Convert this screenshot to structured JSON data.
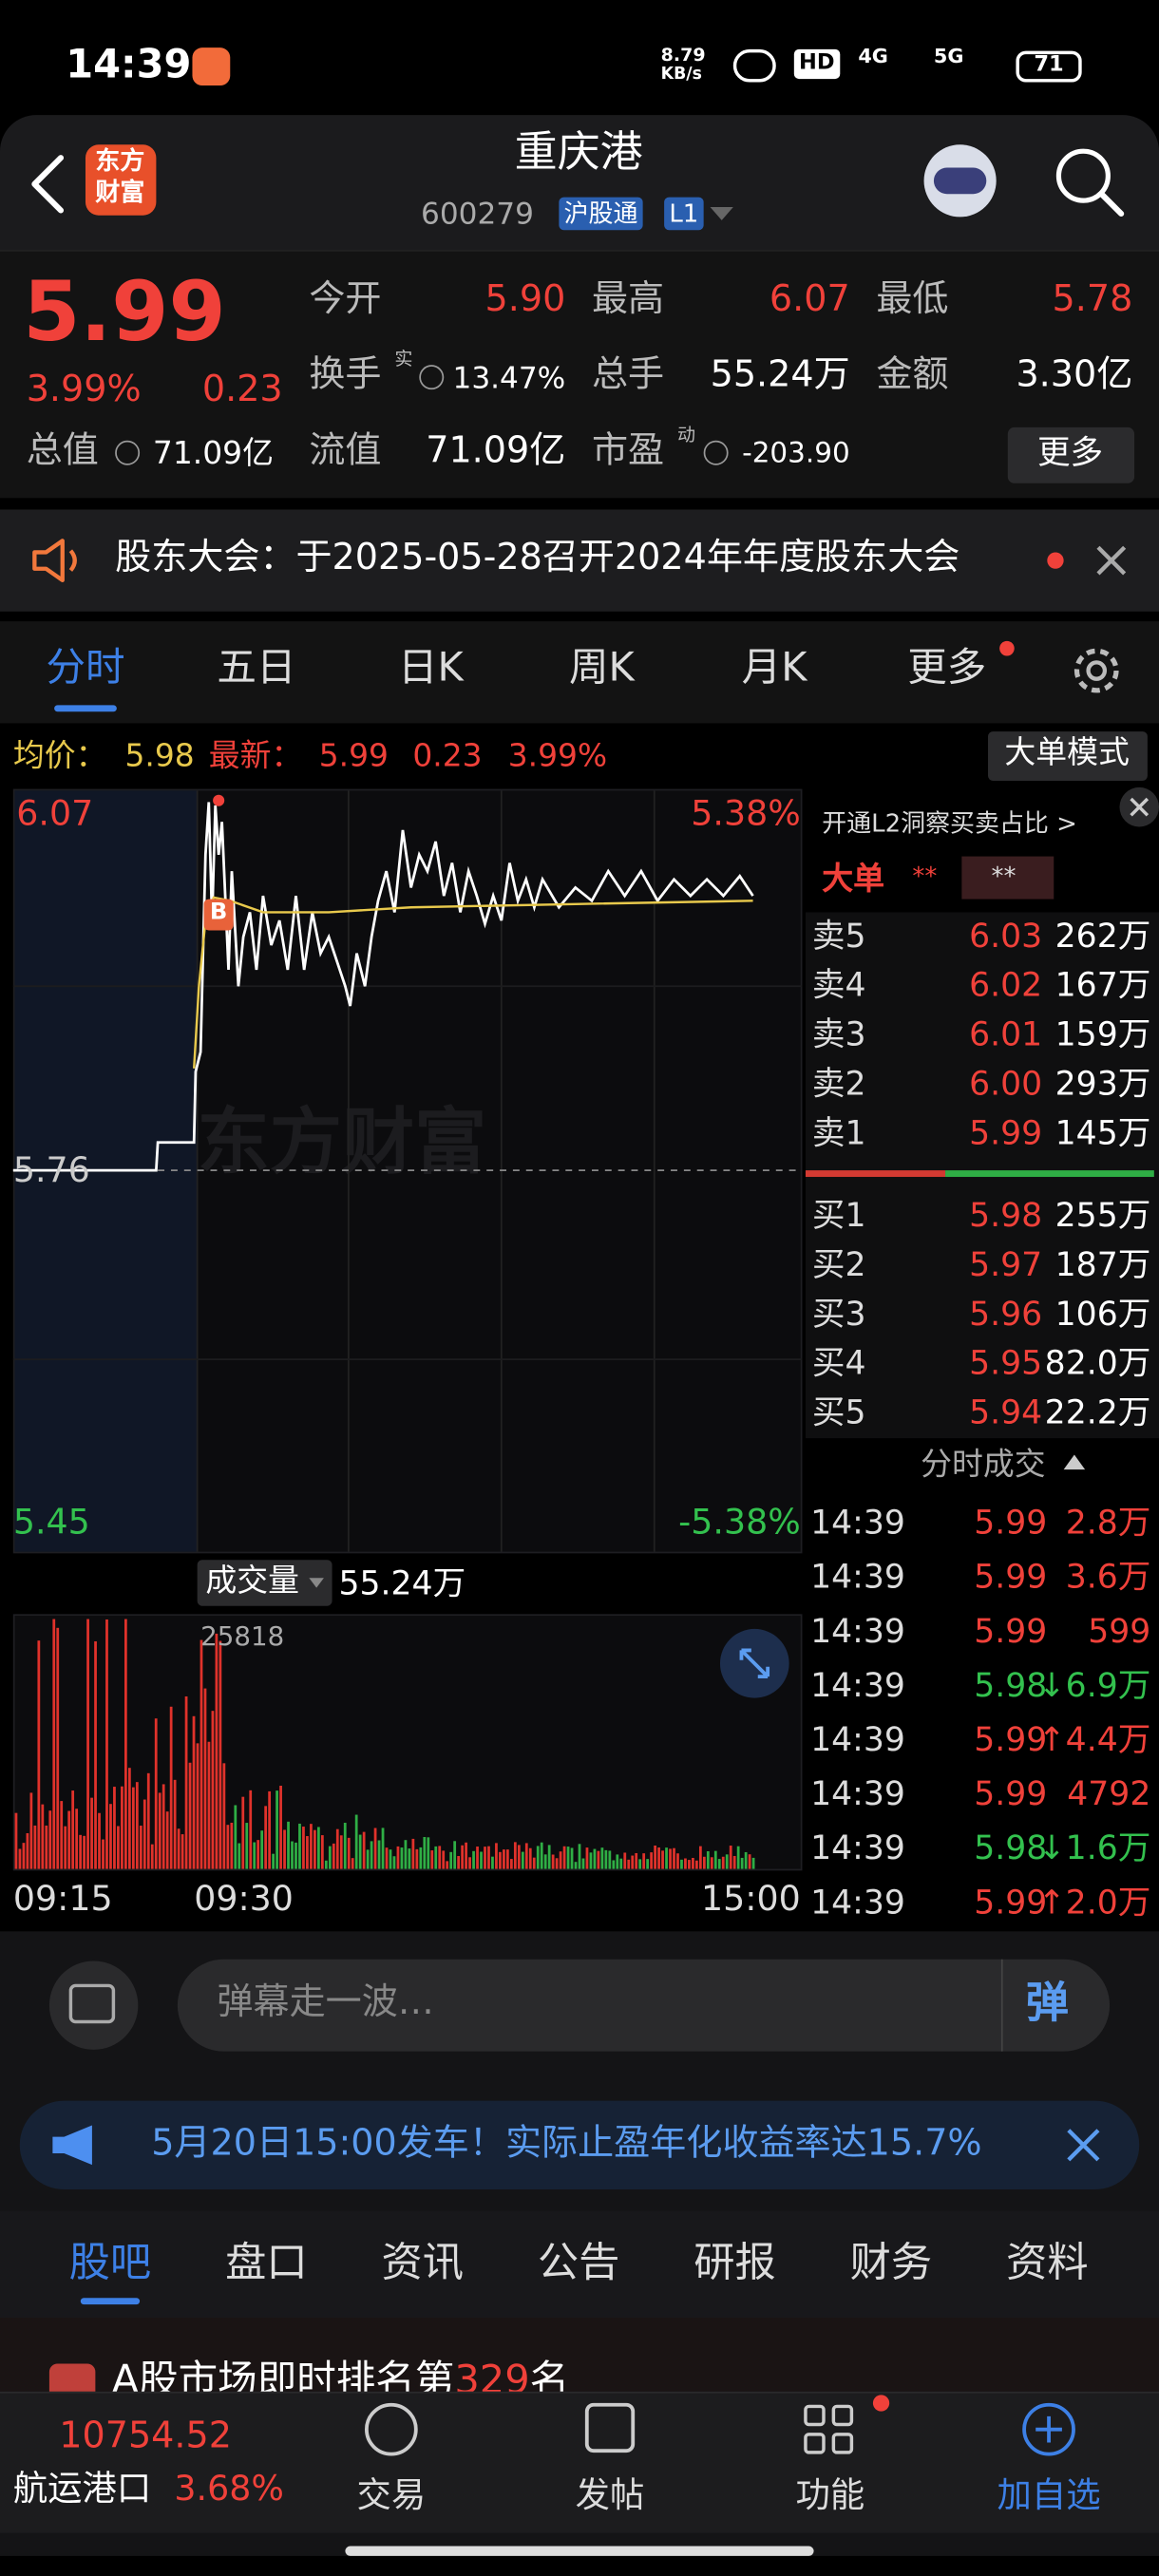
{
  "status_bar": {
    "time": "14:39",
    "net_speed": "8.79",
    "net_unit": "KB/s",
    "hd": "HD",
    "signal_4g": "4G",
    "signal_5g": "5G",
    "battery": "71"
  },
  "header": {
    "logo_line1": "东方",
    "logo_line2": "财富",
    "title": "重庆港",
    "code": "600279",
    "badge": "沪股通",
    "level": "L1"
  },
  "quote": {
    "price": "5.99",
    "change_pct": "3.99%",
    "change": "0.23",
    "open_label": "今开",
    "open": "5.90",
    "high_label": "最高",
    "high": "6.07",
    "low_label": "最低",
    "low": "5.78",
    "turnover_label": "换手",
    "turnover_note": "实",
    "turnover": "13.47%",
    "volume_label": "总手",
    "volume": "55.24万",
    "amount_label": "金额",
    "amount": "3.30亿",
    "mktcap_label": "总值",
    "mktcap": "71.09亿",
    "float_label": "流值",
    "float": "71.09亿",
    "pe_label": "市盈",
    "pe_note": "动",
    "pe": "-203.90",
    "more": "更多"
  },
  "notice": "股东大会：于2025-05-28召开2024年年度股东大会",
  "tabs": [
    "分时",
    "五日",
    "日K",
    "周K",
    "月K",
    "更多"
  ],
  "chart": {
    "avg_label": "均价：",
    "avg": "5.98",
    "latest_label": "最新：",
    "latest": "5.99",
    "change": "0.23",
    "change_pct": "3.99%",
    "mode_button": "大单模式",
    "y_high": "6.07",
    "pct_high": "5.38%",
    "y_prev": "5.76",
    "y_low": "5.45",
    "pct_low": "-5.38%",
    "marker": "B",
    "watermark": "东方财富"
  },
  "volume": {
    "label": "成交量",
    "total": "55.24万",
    "peak": "25818",
    "times": [
      "09:15",
      "09:30",
      "15:00"
    ]
  },
  "order_book": {
    "l2_prompt": "开通L2洞察买卖占比 >",
    "big_order": "大单",
    "masked": [
      "**",
      "**"
    ],
    "asks": [
      {
        "label": "卖5",
        "price": "6.03",
        "volume": "262万"
      },
      {
        "label": "卖4",
        "price": "6.02",
        "volume": "167万"
      },
      {
        "label": "卖3",
        "price": "6.01",
        "volume": "159万"
      },
      {
        "label": "卖2",
        "price": "6.00",
        "volume": "293万"
      },
      {
        "label": "卖1",
        "price": "5.99",
        "volume": "145万"
      }
    ],
    "bids": [
      {
        "label": "买1",
        "price": "5.98",
        "volume": "255万"
      },
      {
        "label": "买2",
        "price": "5.97",
        "volume": "187万"
      },
      {
        "label": "买3",
        "price": "5.96",
        "volume": "106万"
      },
      {
        "label": "买4",
        "price": "5.95",
        "volume": "82.0万"
      },
      {
        "label": "买5",
        "price": "5.94",
        "volume": "22.2万"
      }
    ]
  },
  "trades": {
    "title": "分时成交",
    "rows": [
      {
        "time": "14:39",
        "price": "5.99",
        "volume": "2.8万",
        "color": "#f0413a"
      },
      {
        "time": "14:39",
        "price": "5.99",
        "volume": "3.6万",
        "color": "#f0413a"
      },
      {
        "time": "14:39",
        "price": "5.99",
        "volume": "599",
        "color": "#f0413a"
      },
      {
        "time": "14:39",
        "price": "5.98",
        "volume": "↓6.9万",
        "color": "#33c14e"
      },
      {
        "time": "14:39",
        "price": "5.99",
        "volume": "↑4.4万",
        "color": "#f0413a"
      },
      {
        "time": "14:39",
        "price": "5.99",
        "volume": "4792",
        "color": "#f0413a"
      },
      {
        "time": "14:39",
        "price": "5.98",
        "volume": "↓1.6万",
        "color": "#33c14e"
      },
      {
        "time": "14:39",
        "price": "5.99",
        "volume": "↑2.0万",
        "color": "#f0413a"
      }
    ]
  },
  "danmu": {
    "placeholder": "弹幕走一波…",
    "button": "弹"
  },
  "promo": "5月20日15:00发车！实际止盈年化收益率达15.7%",
  "section_tabs": [
    "股吧",
    "盘口",
    "资讯",
    "公告",
    "研报",
    "财务",
    "资料"
  ],
  "ranking": {
    "text": "A股市场即时排名第",
    "rank": "329",
    "suffix": "名"
  },
  "bottom_nav": {
    "index_value": "10754.52",
    "index_name": "航运港口",
    "index_pct": "3.68%",
    "items": [
      "交易",
      "发帖",
      "功能",
      "加自选"
    ]
  }
}
